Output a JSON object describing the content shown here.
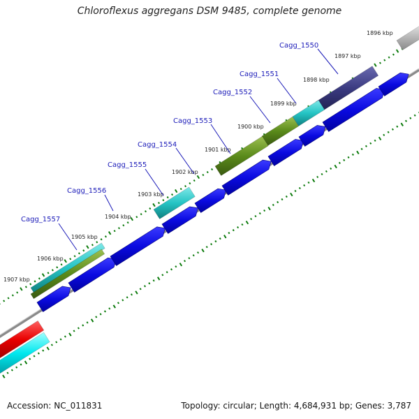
{
  "title": "Chloroflexus aggregans DSM 9485, complete genome",
  "footer": {
    "accession": "Accession: NC_011831",
    "summary": "Topology: circular; Length: 4,684,931 bp; Genes: 3,787"
  },
  "colors": {
    "backbone": "#8a8a8a",
    "forward_cds": "#0a0ae0",
    "tick": "#0a7a0a",
    "label_line": "#1a1ab8",
    "teal": "#25c4c4",
    "olive": "#5a8a1a",
    "navy": "#3a3a80",
    "gray": "#b8b8b8",
    "red": "#e80000",
    "cyan": "#00e8ee"
  },
  "scale": {
    "ticks": [
      {
        "kbp": 1896,
        "label": "1896 kbp"
      },
      {
        "kbp": 1897,
        "label": "1897 kbp"
      },
      {
        "kbp": 1898,
        "label": "1898 kbp"
      },
      {
        "kbp": 1899,
        "label": "1899 kbp"
      },
      {
        "kbp": 1900,
        "label": "1900 kbp"
      },
      {
        "kbp": 1901,
        "label": "1901 kbp"
      },
      {
        "kbp": 1902,
        "label": "1902 kbp"
      },
      {
        "kbp": 1903,
        "label": "1903 kbp"
      },
      {
        "kbp": 1904,
        "label": "1904 kbp"
      },
      {
        "kbp": 1905,
        "label": "1905 kbp"
      },
      {
        "kbp": 1906,
        "label": "1906 kbp"
      },
      {
        "kbp": 1907,
        "label": "1907 kbp"
      }
    ]
  },
  "genes": [
    {
      "name": "Cagg_1550"
    },
    {
      "name": "Cagg_1551"
    },
    {
      "name": "Cagg_1552"
    },
    {
      "name": "Cagg_1553"
    },
    {
      "name": "Cagg_1554"
    },
    {
      "name": "Cagg_1555"
    },
    {
      "name": "Cagg_1556"
    },
    {
      "name": "Cagg_1557"
    }
  ]
}
